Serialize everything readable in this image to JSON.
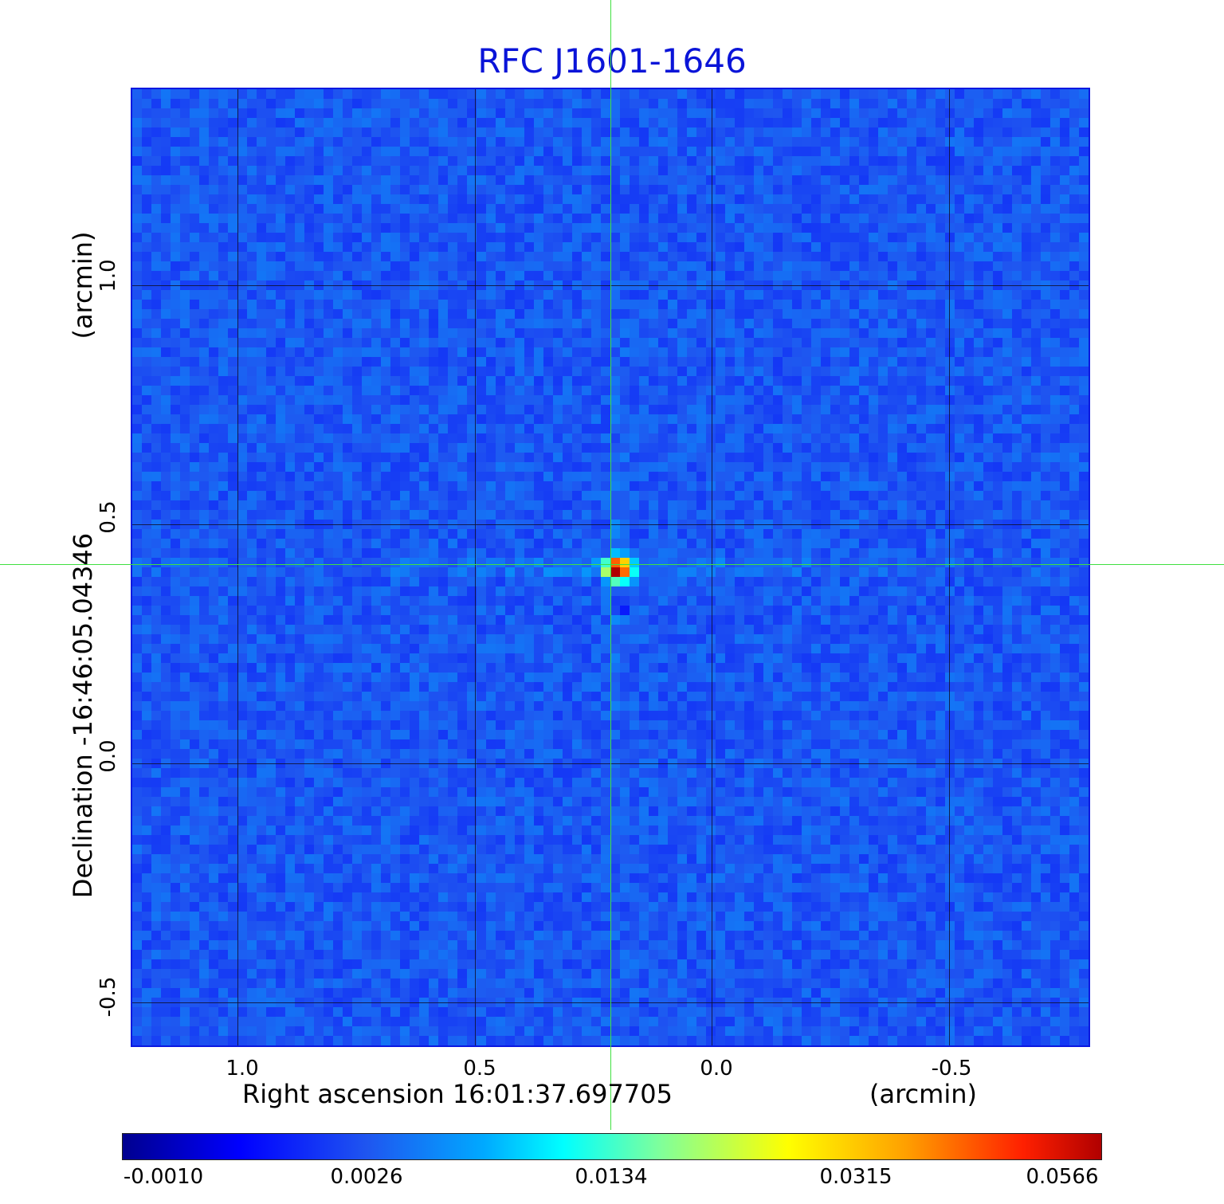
{
  "title": "RFC J1601-1646",
  "x_ticks": [
    "1.0",
    "0.5",
    "0.0",
    "-0.5"
  ],
  "y_ticks": [
    "1.0",
    "0.5",
    "0.0",
    "-0.5"
  ],
  "x_label": "Right ascension  16:01:37.697705",
  "x_unit": "(arcmin)",
  "y_label": "Declination  -16:46:05.04346",
  "y_unit": "(arcmin)",
  "colorbar_ticks": [
    "-0.0010",
    "0.0026",
    "0.0134",
    "0.0315",
    "0.0566"
  ],
  "colors": {
    "title": "#0a14d8",
    "background_field": "#1f56f0",
    "crosshair": "#40e040",
    "grid": "#101030"
  }
}
